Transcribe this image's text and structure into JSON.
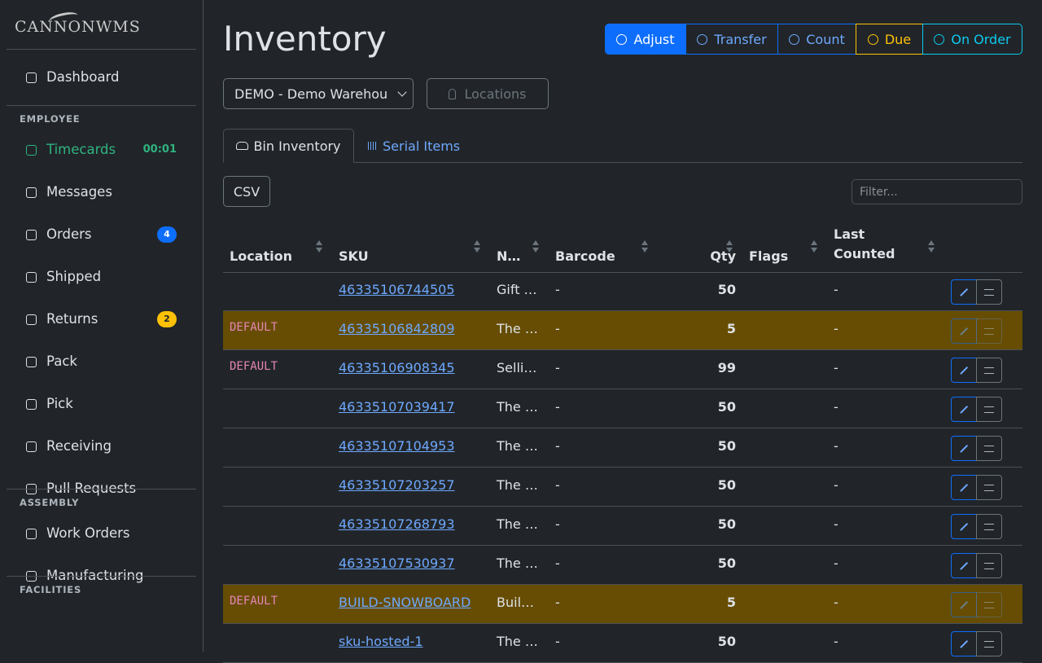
{
  "sidebar": {
    "logo": "CANNONWMS",
    "top": [
      {
        "label": "Dashboard"
      }
    ],
    "sections": [
      {
        "heading": "EMPLOYEE",
        "items": [
          {
            "label": "Timecards",
            "badge": "00:01"
          },
          {
            "label": "Messages"
          },
          {
            "label": "Orders",
            "badge": 4
          },
          {
            "label": "Shipped"
          },
          {
            "label": "Returns",
            "badge": 2
          },
          {
            "label": "Pack"
          },
          {
            "label": "Pick"
          },
          {
            "label": "Receiving"
          },
          {
            "label": "Pull Requests"
          }
        ]
      },
      {
        "heading": "ASSEMBLY",
        "items": [
          {
            "label": "Work Orders"
          },
          {
            "label": "Manufacturing"
          }
        ]
      },
      {
        "heading": "FACILITIES",
        "items": []
      }
    ]
  },
  "header": {
    "title": "Inventory",
    "actions": [
      "Adjust",
      "Transfer",
      "Count",
      "Due",
      "On Order"
    ]
  },
  "filters": {
    "warehouse": "DEMO - Demo Warehou",
    "locations": "Locations"
  },
  "tabs": [
    "Bin Inventory",
    "Serial Items"
  ],
  "toolbar": {
    "export": "CSV",
    "filter": "Filter..."
  },
  "table": {
    "columns": [
      "Location",
      "SKU",
      "N…",
      "Barcode",
      "Qty",
      "Flags",
      "Last Counted"
    ],
    "rows": [
      {
        "sku": "46335106744505",
        "name": "Gift …",
        "barcode": "-",
        "qty": 50,
        "last_counted": "-"
      },
      {
        "location": "DEFAULT",
        "sku": "46335106842809",
        "name": "The …",
        "barcode": "-",
        "qty": 5,
        "last_counted": "-",
        "highlight": true
      },
      {
        "location": "DEFAULT",
        "sku": "46335106908345",
        "name": "Selli…",
        "barcode": "-",
        "qty": 99,
        "last_counted": "-"
      },
      {
        "sku": "46335107039417",
        "name": "The …",
        "barcode": "-",
        "qty": 50,
        "last_counted": "-"
      },
      {
        "sku": "46335107104953",
        "name": "The …",
        "barcode": "-",
        "qty": 50,
        "last_counted": "-"
      },
      {
        "sku": "46335107203257",
        "name": "The …",
        "barcode": "-",
        "qty": 50,
        "last_counted": "-"
      },
      {
        "sku": "46335107268793",
        "name": "The …",
        "barcode": "-",
        "qty": 50,
        "last_counted": "-"
      },
      {
        "sku": "46335107530937",
        "name": "The …",
        "barcode": "-",
        "qty": 50,
        "last_counted": "-"
      },
      {
        "location": "DEFAULT",
        "sku": "BUILD-SNOWBOARD",
        "name": "Buil…",
        "barcode": "-",
        "qty": 5,
        "last_counted": "-",
        "highlight": true
      },
      {
        "sku": "sku-hosted-1",
        "name": "The …",
        "barcode": "-",
        "qty": 50,
        "last_counted": "-"
      }
    ]
  }
}
